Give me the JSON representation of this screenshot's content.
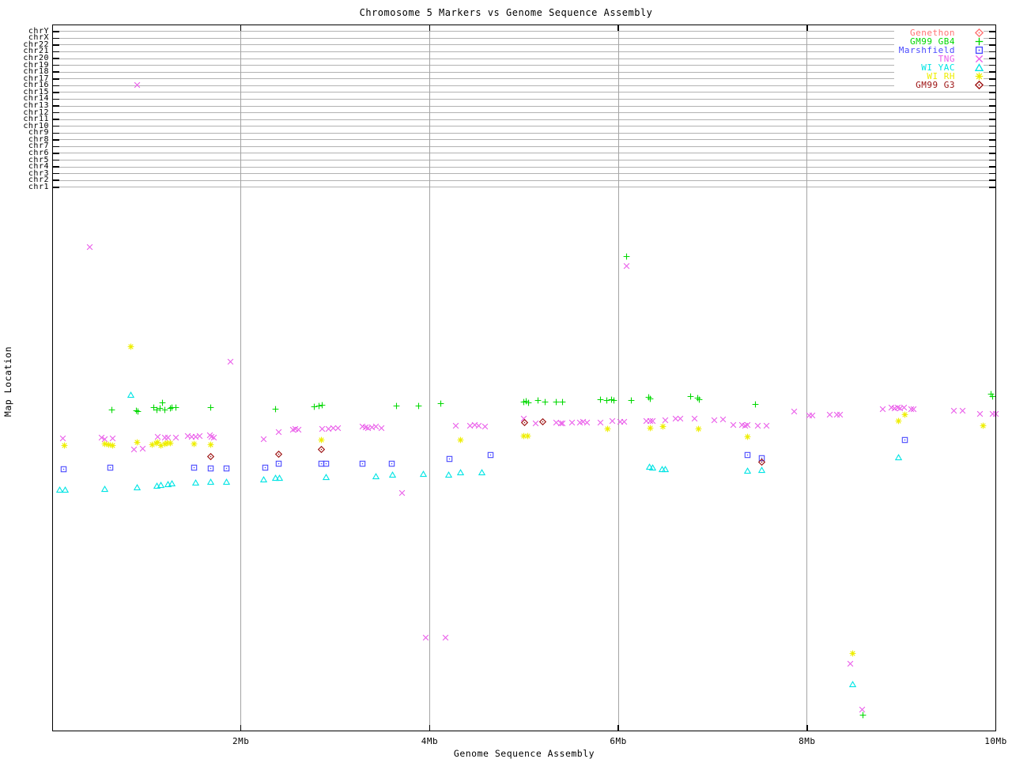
{
  "title": "Chromosome 5 Markers vs Genome Sequence Assembly",
  "x_axis": {
    "label": "Genome Sequence Assembly",
    "tick_labels": [
      "2Mb",
      "4Mb",
      "6Mb",
      "8Mb",
      "10Mb"
    ],
    "tick_values_mb": [
      2,
      4,
      6,
      8,
      10
    ],
    "range_mb": [
      0,
      10
    ]
  },
  "y_axis": {
    "label": "Map Location",
    "chromosome_rows": [
      "chrY",
      "chrX",
      "chr22",
      "chr21",
      "chr20",
      "chr19",
      "chr18",
      "chr17",
      "chr16",
      "chr15",
      "chr14",
      "chr13",
      "chr12",
      "chr11",
      "chr10",
      "chr9",
      "chr8",
      "chr7",
      "chr6",
      "chr5",
      "chr4",
      "chr3",
      "chr2",
      "chr1"
    ]
  },
  "chart_data": {
    "type": "scatter",
    "title": "Chromosome 5 Markers vs Genome Sequence Assembly",
    "xlabel": "Genome Sequence Assembly",
    "ylabel": "Map Location",
    "xlim_mb": [
      0,
      10
    ],
    "grid": true,
    "legend_position": "top-right",
    "point_format": "[x_in_Mb, y_in_screen_px] (y axis is an unlabeled stacked map-location scale; chromosome bands chrY..chr1 occupy screen y 40..237)",
    "series": [
      {
        "name": "Genethon",
        "color": "#ff7474",
        "marker": "diamond-dot",
        "points": []
      },
      {
        "name": "GM99 GB4",
        "color": "#00d800",
        "marker": "plus",
        "points": [
          [
            0.63,
            512
          ],
          [
            0.89,
            513
          ],
          [
            0.91,
            514
          ],
          [
            1.08,
            509
          ],
          [
            1.11,
            512
          ],
          [
            1.14,
            510
          ],
          [
            1.17,
            503
          ],
          [
            1.19,
            512
          ],
          [
            1.25,
            510
          ],
          [
            1.27,
            509
          ],
          [
            1.31,
            509
          ],
          [
            1.68,
            509
          ],
          [
            2.37,
            511
          ],
          [
            2.78,
            508
          ],
          [
            2.83,
            507
          ],
          [
            2.86,
            506
          ],
          [
            3.65,
            507
          ],
          [
            3.88,
            507
          ],
          [
            4.12,
            504
          ],
          [
            5.0,
            502
          ],
          [
            5.02,
            501
          ],
          [
            5.05,
            503
          ],
          [
            5.15,
            500
          ],
          [
            5.22,
            502
          ],
          [
            5.34,
            502
          ],
          [
            5.41,
            502
          ],
          [
            5.81,
            499
          ],
          [
            5.88,
            500
          ],
          [
            5.93,
            499
          ],
          [
            5.95,
            500
          ],
          [
            6.14,
            500
          ],
          [
            6.32,
            496
          ],
          [
            6.34,
            498
          ],
          [
            6.77,
            495
          ],
          [
            6.84,
            497
          ],
          [
            6.86,
            499
          ],
          [
            7.45,
            505
          ],
          [
            9.95,
            492
          ],
          [
            9.97,
            495
          ],
          [
            6.09,
            318
          ],
          [
            8.59,
            898
          ]
        ]
      },
      {
        "name": "Marshfield",
        "color": "#4a4aff",
        "marker": "box-dot",
        "points": [
          [
            0.12,
            587
          ],
          [
            0.62,
            585
          ],
          [
            1.5,
            585
          ],
          [
            1.68,
            586
          ],
          [
            1.85,
            586
          ],
          [
            2.26,
            585
          ],
          [
            2.4,
            580
          ],
          [
            2.85,
            580
          ],
          [
            2.9,
            580
          ],
          [
            3.29,
            580
          ],
          [
            3.6,
            580
          ],
          [
            4.21,
            574
          ],
          [
            4.65,
            569
          ],
          [
            7.37,
            569
          ],
          [
            7.52,
            573
          ],
          [
            9.04,
            550
          ]
        ]
      },
      {
        "name": "TNG",
        "color": "#ea5cea",
        "marker": "cross",
        "points": [
          [
            0.11,
            548
          ],
          [
            0.4,
            306
          ],
          [
            0.52,
            547
          ],
          [
            0.56,
            549
          ],
          [
            0.64,
            548
          ],
          [
            0.87,
            562
          ],
          [
            0.9,
            101
          ],
          [
            0.96,
            561
          ],
          [
            1.12,
            546
          ],
          [
            1.19,
            547
          ],
          [
            1.23,
            547
          ],
          [
            1.31,
            547
          ],
          [
            1.44,
            545
          ],
          [
            1.48,
            546
          ],
          [
            1.52,
            546
          ],
          [
            1.56,
            545
          ],
          [
            1.67,
            544
          ],
          [
            1.69,
            546
          ],
          [
            1.71,
            547
          ],
          [
            1.89,
            451
          ],
          [
            2.24,
            549
          ],
          [
            2.4,
            540
          ],
          [
            2.55,
            537
          ],
          [
            2.58,
            536
          ],
          [
            2.61,
            537
          ],
          [
            2.86,
            536
          ],
          [
            2.93,
            536
          ],
          [
            2.98,
            535
          ],
          [
            3.03,
            535
          ],
          [
            3.29,
            533
          ],
          [
            3.32,
            534
          ],
          [
            3.35,
            535
          ],
          [
            3.39,
            534
          ],
          [
            3.43,
            533
          ],
          [
            3.49,
            535
          ],
          [
            3.71,
            617
          ],
          [
            3.96,
            800
          ],
          [
            4.17,
            800
          ],
          [
            4.28,
            532
          ],
          [
            4.43,
            532
          ],
          [
            4.48,
            531
          ],
          [
            4.52,
            532
          ],
          [
            4.59,
            533
          ],
          [
            5.0,
            523
          ],
          [
            5.12,
            529
          ],
          [
            5.34,
            528
          ],
          [
            5.39,
            529
          ],
          [
            5.41,
            529
          ],
          [
            5.51,
            528
          ],
          [
            5.59,
            528
          ],
          [
            5.63,
            527
          ],
          [
            5.67,
            528
          ],
          [
            5.81,
            528
          ],
          [
            5.94,
            526
          ],
          [
            6.02,
            527
          ],
          [
            6.06,
            527
          ],
          [
            6.09,
            330
          ],
          [
            6.3,
            526
          ],
          [
            6.34,
            526
          ],
          [
            6.36,
            526
          ],
          [
            6.5,
            525
          ],
          [
            6.61,
            523
          ],
          [
            6.66,
            523
          ],
          [
            6.81,
            523
          ],
          [
            7.02,
            525
          ],
          [
            7.11,
            524
          ],
          [
            7.22,
            531
          ],
          [
            7.31,
            531
          ],
          [
            7.34,
            532
          ],
          [
            7.37,
            531
          ],
          [
            7.48,
            532
          ],
          [
            7.57,
            532
          ],
          [
            7.86,
            514
          ],
          [
            8.02,
            519
          ],
          [
            8.06,
            519
          ],
          [
            8.24,
            518
          ],
          [
            8.32,
            518
          ],
          [
            8.35,
            518
          ],
          [
            8.46,
            833
          ],
          [
            8.58,
            891
          ],
          [
            8.8,
            511
          ],
          [
            8.89,
            509
          ],
          [
            8.93,
            510
          ],
          [
            8.96,
            509
          ],
          [
            8.99,
            510
          ],
          [
            9.03,
            509
          ],
          [
            9.1,
            511
          ],
          [
            9.13,
            511
          ],
          [
            9.56,
            513
          ],
          [
            9.65,
            513
          ],
          [
            9.83,
            517
          ],
          [
            9.97,
            517
          ],
          [
            10.0,
            517
          ]
        ]
      },
      {
        "name": "WI YAC",
        "color": "#00e4e4",
        "marker": "triangle",
        "points": [
          [
            0.08,
            613
          ],
          [
            0.14,
            613
          ],
          [
            0.56,
            612
          ],
          [
            0.83,
            493
          ],
          [
            0.9,
            610
          ],
          [
            1.11,
            608
          ],
          [
            1.15,
            607
          ],
          [
            1.23,
            606
          ],
          [
            1.27,
            605
          ],
          [
            1.52,
            604
          ],
          [
            1.68,
            603
          ],
          [
            1.85,
            603
          ],
          [
            2.24,
            600
          ],
          [
            2.37,
            598
          ],
          [
            2.41,
            598
          ],
          [
            2.9,
            597
          ],
          [
            3.43,
            596
          ],
          [
            3.61,
            594
          ],
          [
            3.93,
            593
          ],
          [
            4.2,
            594
          ],
          [
            4.33,
            591
          ],
          [
            4.55,
            591
          ],
          [
            6.33,
            584
          ],
          [
            6.36,
            585
          ],
          [
            6.46,
            587
          ],
          [
            6.5,
            587
          ],
          [
            7.37,
            589
          ],
          [
            7.52,
            588
          ],
          [
            8.97,
            572
          ],
          [
            8.48,
            859
          ]
        ]
      },
      {
        "name": "WI RH",
        "color": "#eeee00",
        "marker": "star",
        "points": [
          [
            0.13,
            557
          ],
          [
            0.56,
            555
          ],
          [
            0.6,
            556
          ],
          [
            0.64,
            557
          ],
          [
            0.83,
            432
          ],
          [
            0.9,
            553
          ],
          [
            1.06,
            556
          ],
          [
            1.1,
            554
          ],
          [
            1.12,
            553
          ],
          [
            1.15,
            557
          ],
          [
            1.19,
            555
          ],
          [
            1.22,
            554
          ],
          [
            1.25,
            554
          ],
          [
            1.5,
            555
          ],
          [
            1.68,
            556
          ],
          [
            2.85,
            550
          ],
          [
            4.33,
            550
          ],
          [
            5.0,
            545
          ],
          [
            5.04,
            545
          ],
          [
            5.89,
            536
          ],
          [
            6.34,
            535
          ],
          [
            6.47,
            533
          ],
          [
            6.85,
            536
          ],
          [
            7.37,
            546
          ],
          [
            8.48,
            820
          ],
          [
            8.97,
            526
          ],
          [
            9.04,
            518
          ],
          [
            9.87,
            532
          ]
        ]
      },
      {
        "name": "GM99 G3",
        "color": "#9b0f0f",
        "marker": "diamond-dot",
        "points": [
          [
            1.68,
            571
          ],
          [
            2.4,
            568
          ],
          [
            2.85,
            562
          ],
          [
            5.01,
            528
          ],
          [
            5.2,
            527
          ],
          [
            7.52,
            578
          ]
        ]
      }
    ]
  }
}
